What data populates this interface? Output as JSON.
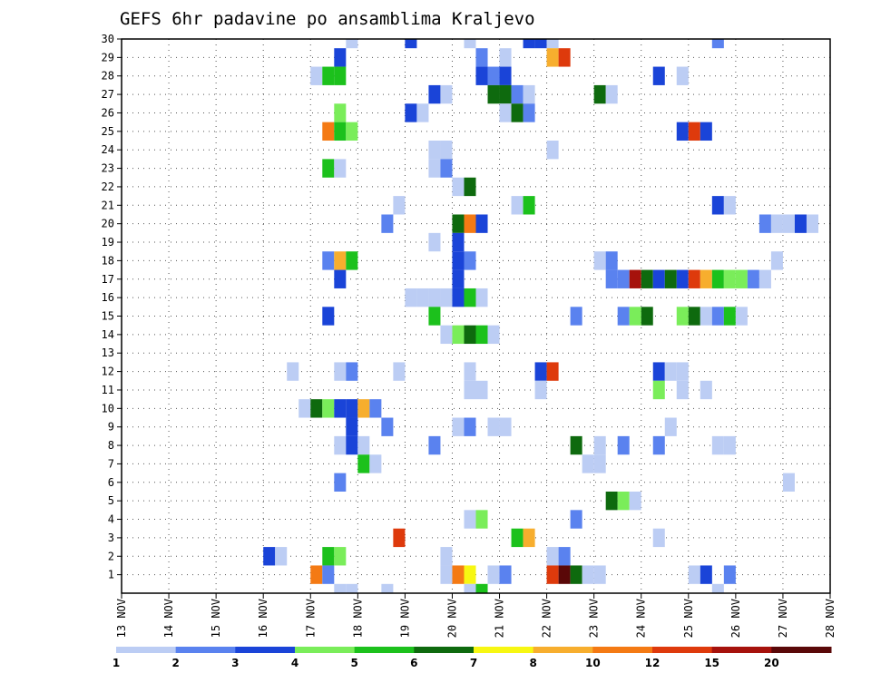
{
  "title": "GEFS 6hr padavine po ansamblima Kraljevo",
  "chart_data": {
    "type": "heatmap",
    "title": "GEFS 6hr padavine po ansamblima Kraljevo",
    "x_ticks": [
      "13 NOV",
      "14 NOV",
      "15 NOV",
      "16 NOV",
      "17 NOV",
      "18 NOV",
      "19 NOV",
      "20 NOV",
      "21 NOV",
      "22 NOV",
      "23 NOV",
      "24 NOV",
      "25 NOV",
      "26 NOV",
      "27 NOV",
      "28 NOV"
    ],
    "y_ticks": [
      1,
      2,
      3,
      4,
      5,
      6,
      7,
      8,
      9,
      10,
      11,
      12,
      13,
      14,
      15,
      16,
      17,
      18,
      19,
      20,
      21,
      22,
      23,
      24,
      25,
      26,
      27,
      28,
      29,
      30
    ],
    "x_step_hours": 6,
    "x_range_days": [
      "13 NOV",
      "28 NOV"
    ],
    "y_range": [
      0,
      30
    ],
    "grid": true,
    "levels": [
      "1",
      "2",
      "3",
      "4",
      "5",
      "6",
      "7",
      "8",
      "10",
      "12",
      "15",
      "20"
    ],
    "level_colors": [
      "#bccdf4",
      "#5a82ef",
      "#1a44d8",
      "#7aed5a",
      "#1cc11c",
      "#0e6a0e",
      "#f7f712",
      "#f7ae2e",
      "#f47a14",
      "#de3a0c",
      "#a6120c",
      "#5a0808"
    ],
    "cells": [
      {
        "x": "17 NOV 18h",
        "y": 30,
        "c": 0
      },
      {
        "x": "19 NOV 00h",
        "y": 30,
        "c": 2
      },
      {
        "x": "20 NOV 06h",
        "y": 30,
        "c": 0
      },
      {
        "x": "21 NOV 12h",
        "y": 30,
        "c": 2
      },
      {
        "x": "21 NOV 18h",
        "y": 30,
        "c": 2
      },
      {
        "x": "22 NOV 00h",
        "y": 30,
        "c": 0
      },
      {
        "x": "25 NOV 12h",
        "y": 30,
        "c": 1
      },
      {
        "x": "17 NOV 12h",
        "y": 29,
        "c": 2
      },
      {
        "x": "20 NOV 12h",
        "y": 29,
        "c": 1
      },
      {
        "x": "21 NOV 00h",
        "y": 29,
        "c": 0
      },
      {
        "x": "22 NOV 00h",
        "y": 29,
        "c": 7
      },
      {
        "x": "22 NOV 06h",
        "y": 29,
        "c": 9
      },
      {
        "x": "17 NOV 00h",
        "y": 28,
        "c": 0
      },
      {
        "x": "17 NOV 06h",
        "y": 28,
        "c": 4
      },
      {
        "x": "17 NOV 12h",
        "y": 28,
        "c": 4
      },
      {
        "x": "20 NOV 12h",
        "y": 28,
        "c": 2
      },
      {
        "x": "20 NOV 18h",
        "y": 28,
        "c": 1
      },
      {
        "x": "21 NOV 00h",
        "y": 28,
        "c": 2
      },
      {
        "x": "24 NOV 06h",
        "y": 28,
        "c": 2
      },
      {
        "x": "24 NOV 18h",
        "y": 28,
        "c": 0
      },
      {
        "x": "19 NOV 12h",
        "y": 27,
        "c": 2
      },
      {
        "x": "19 NOV 18h",
        "y": 27,
        "c": 0
      },
      {
        "x": "20 NOV 18h",
        "y": 27,
        "c": 5
      },
      {
        "x": "21 NOV 00h",
        "y": 27,
        "c": 5
      },
      {
        "x": "21 NOV 06h",
        "y": 27,
        "c": 1
      },
      {
        "x": "21 NOV 12h",
        "y": 27,
        "c": 0
      },
      {
        "x": "23 NOV 00h",
        "y": 27,
        "c": 5
      },
      {
        "x": "23 NOV 06h",
        "y": 27,
        "c": 0
      },
      {
        "x": "17 NOV 12h",
        "y": 26,
        "c": 3
      },
      {
        "x": "19 NOV 00h",
        "y": 26,
        "c": 2
      },
      {
        "x": "19 NOV 06h",
        "y": 26,
        "c": 0
      },
      {
        "x": "21 NOV 00h",
        "y": 26,
        "c": 0
      },
      {
        "x": "21 NOV 06h",
        "y": 26,
        "c": 5
      },
      {
        "x": "21 NOV 12h",
        "y": 26,
        "c": 1
      },
      {
        "x": "17 NOV 06h",
        "y": 25,
        "c": 8
      },
      {
        "x": "17 NOV 12h",
        "y": 25,
        "c": 4
      },
      {
        "x": "17 NOV 18h",
        "y": 25,
        "c": 3
      },
      {
        "x": "24 NOV 18h",
        "y": 25,
        "c": 2
      },
      {
        "x": "25 NOV 00h",
        "y": 25,
        "c": 9
      },
      {
        "x": "25 NOV 06h",
        "y": 25,
        "c": 2
      },
      {
        "x": "19 NOV 12h",
        "y": 24,
        "c": 0
      },
      {
        "x": "19 NOV 18h",
        "y": 24,
        "c": 0
      },
      {
        "x": "22 NOV 00h",
        "y": 24,
        "c": 0
      },
      {
        "x": "17 NOV 06h",
        "y": 23,
        "c": 4
      },
      {
        "x": "17 NOV 12h",
        "y": 23,
        "c": 0
      },
      {
        "x": "19 NOV 12h",
        "y": 23,
        "c": 0
      },
      {
        "x": "19 NOV 18h",
        "y": 23,
        "c": 1
      },
      {
        "x": "20 NOV 00h",
        "y": 22,
        "c": 0
      },
      {
        "x": "20 NOV 06h",
        "y": 22,
        "c": 5
      },
      {
        "x": "18 NOV 18h",
        "y": 21,
        "c": 0
      },
      {
        "x": "21 NOV 06h",
        "y": 21,
        "c": 0
      },
      {
        "x": "21 NOV 12h",
        "y": 21,
        "c": 4
      },
      {
        "x": "25 NOV 12h",
        "y": 21,
        "c": 2
      },
      {
        "x": "25 NOV 18h",
        "y": 21,
        "c": 0
      },
      {
        "x": "18 NOV 12h",
        "y": 20,
        "c": 1
      },
      {
        "x": "20 NOV 00h",
        "y": 20,
        "c": 5
      },
      {
        "x": "20 NOV 06h",
        "y": 20,
        "c": 8
      },
      {
        "x": "20 NOV 12h",
        "y": 20,
        "c": 2
      },
      {
        "x": "26 NOV 12h",
        "y": 20,
        "c": 1
      },
      {
        "x": "26 NOV 18h",
        "y": 20,
        "c": 0
      },
      {
        "x": "27 NOV 00h",
        "y": 20,
        "c": 0
      },
      {
        "x": "27 NOV 06h",
        "y": 20,
        "c": 2
      },
      {
        "x": "27 NOV 12h",
        "y": 20,
        "c": 0
      },
      {
        "x": "19 NOV 12h",
        "y": 19,
        "c": 0
      },
      {
        "x": "20 NOV 00h",
        "y": 19,
        "c": 2
      },
      {
        "x": "17 NOV 06h",
        "y": 18,
        "c": 1
      },
      {
        "x": "17 NOV 12h",
        "y": 18,
        "c": 7
      },
      {
        "x": "17 NOV 18h",
        "y": 18,
        "c": 4
      },
      {
        "x": "20 NOV 00h",
        "y": 18,
        "c": 2
      },
      {
        "x": "20 NOV 06h",
        "y": 18,
        "c": 1
      },
      {
        "x": "23 NOV 00h",
        "y": 18,
        "c": 0
      },
      {
        "x": "23 NOV 06h",
        "y": 18,
        "c": 1
      },
      {
        "x": "26 NOV 18h",
        "y": 18,
        "c": 0
      },
      {
        "x": "17 NOV 12h",
        "y": 17,
        "c": 2
      },
      {
        "x": "20 NOV 00h",
        "y": 17,
        "c": 2
      },
      {
        "x": "23 NOV 06h",
        "y": 17,
        "c": 1
      },
      {
        "x": "23 NOV 12h",
        "y": 17,
        "c": 1
      },
      {
        "x": "23 NOV 18h",
        "y": 17,
        "c": 10
      },
      {
        "x": "24 NOV 00h",
        "y": 17,
        "c": 5
      },
      {
        "x": "24 NOV 06h",
        "y": 17,
        "c": 2
      },
      {
        "x": "24 NOV 12h",
        "y": 17,
        "c": 5
      },
      {
        "x": "24 NOV 18h",
        "y": 17,
        "c": 2
      },
      {
        "x": "25 NOV 00h",
        "y": 17,
        "c": 9
      },
      {
        "x": "25 NOV 06h",
        "y": 17,
        "c": 7
      },
      {
        "x": "25 NOV 12h",
        "y": 17,
        "c": 4
      },
      {
        "x": "25 NOV 18h",
        "y": 17,
        "c": 3
      },
      {
        "x": "26 NOV 00h",
        "y": 17,
        "c": 3
      },
      {
        "x": "26 NOV 06h",
        "y": 17,
        "c": 1
      },
      {
        "x": "26 NOV 12h",
        "y": 17,
        "c": 0
      },
      {
        "x": "19 NOV 00h",
        "y": 16,
        "c": 0
      },
      {
        "x": "19 NOV 06h",
        "y": 16,
        "c": 0
      },
      {
        "x": "19 NOV 12h",
        "y": 16,
        "c": 0
      },
      {
        "x": "19 NOV 18h",
        "y": 16,
        "c": 0
      },
      {
        "x": "20 NOV 00h",
        "y": 16,
        "c": 2
      },
      {
        "x": "20 NOV 06h",
        "y": 16,
        "c": 4
      },
      {
        "x": "20 NOV 12h",
        "y": 16,
        "c": 0
      },
      {
        "x": "17 NOV 06h",
        "y": 15,
        "c": 2
      },
      {
        "x": "19 NOV 12h",
        "y": 15,
        "c": 4
      },
      {
        "x": "22 NOV 12h",
        "y": 15,
        "c": 1
      },
      {
        "x": "23 NOV 12h",
        "y": 15,
        "c": 1
      },
      {
        "x": "23 NOV 18h",
        "y": 15,
        "c": 3
      },
      {
        "x": "24 NOV 00h",
        "y": 15,
        "c": 5
      },
      {
        "x": "24 NOV 18h",
        "y": 15,
        "c": 3
      },
      {
        "x": "25 NOV 00h",
        "y": 15,
        "c": 5
      },
      {
        "x": "25 NOV 06h",
        "y": 15,
        "c": 0
      },
      {
        "x": "25 NOV 12h",
        "y": 15,
        "c": 1
      },
      {
        "x": "25 NOV 18h",
        "y": 15,
        "c": 4
      },
      {
        "x": "26 NOV 00h",
        "y": 15,
        "c": 0
      },
      {
        "x": "19 NOV 18h",
        "y": 14,
        "c": 0
      },
      {
        "x": "20 NOV 00h",
        "y": 14,
        "c": 3
      },
      {
        "x": "20 NOV 06h",
        "y": 14,
        "c": 5
      },
      {
        "x": "20 NOV 12h",
        "y": 14,
        "c": 4
      },
      {
        "x": "20 NOV 18h",
        "y": 14,
        "c": 0
      },
      {
        "x": "16 NOV 12h",
        "y": 12,
        "c": 0
      },
      {
        "x": "17 NOV 12h",
        "y": 12,
        "c": 0
      },
      {
        "x": "17 NOV 18h",
        "y": 12,
        "c": 1
      },
      {
        "x": "18 NOV 18h",
        "y": 12,
        "c": 0
      },
      {
        "x": "20 NOV 06h",
        "y": 12,
        "c": 0
      },
      {
        "x": "21 NOV 18h",
        "y": 12,
        "c": 2
      },
      {
        "x": "22 NOV 00h",
        "y": 12,
        "c": 9
      },
      {
        "x": "24 NOV 06h",
        "y": 12,
        "c": 2
      },
      {
        "x": "24 NOV 12h",
        "y": 12,
        "c": 0
      },
      {
        "x": "24 NOV 18h",
        "y": 12,
        "c": 0
      },
      {
        "x": "20 NOV 06h",
        "y": 11,
        "c": 0
      },
      {
        "x": "20 NOV 12h",
        "y": 11,
        "c": 0
      },
      {
        "x": "21 NOV 18h",
        "y": 11,
        "c": 0
      },
      {
        "x": "24 NOV 06h",
        "y": 11,
        "c": 3
      },
      {
        "x": "24 NOV 18h",
        "y": 11,
        "c": 0
      },
      {
        "x": "25 NOV 06h",
        "y": 11,
        "c": 0
      },
      {
        "x": "16 NOV 18h",
        "y": 10,
        "c": 0
      },
      {
        "x": "17 NOV 00h",
        "y": 10,
        "c": 5
      },
      {
        "x": "17 NOV 06h",
        "y": 10,
        "c": 3
      },
      {
        "x": "17 NOV 12h",
        "y": 10,
        "c": 2
      },
      {
        "x": "17 NOV 18h",
        "y": 10,
        "c": 2
      },
      {
        "x": "18 NOV 00h",
        "y": 10,
        "c": 7
      },
      {
        "x": "18 NOV 06h",
        "y": 10,
        "c": 1
      },
      {
        "x": "17 NOV 18h",
        "y": 9,
        "c": 2
      },
      {
        "x": "18 NOV 12h",
        "y": 9,
        "c": 1
      },
      {
        "x": "20 NOV 00h",
        "y": 9,
        "c": 0
      },
      {
        "x": "20 NOV 06h",
        "y": 9,
        "c": 1
      },
      {
        "x": "20 NOV 18h",
        "y": 9,
        "c": 0
      },
      {
        "x": "21 NOV 00h",
        "y": 9,
        "c": 0
      },
      {
        "x": "24 NOV 12h",
        "y": 9,
        "c": 0
      },
      {
        "x": "17 NOV 12h",
        "y": 8,
        "c": 0
      },
      {
        "x": "17 NOV 18h",
        "y": 8,
        "c": 2
      },
      {
        "x": "18 NOV 00h",
        "y": 8,
        "c": 0
      },
      {
        "x": "19 NOV 12h",
        "y": 8,
        "c": 1
      },
      {
        "x": "22 NOV 12h",
        "y": 8,
        "c": 5
      },
      {
        "x": "23 NOV 00h",
        "y": 8,
        "c": 0
      },
      {
        "x": "23 NOV 12h",
        "y": 8,
        "c": 1
      },
      {
        "x": "24 NOV 06h",
        "y": 8,
        "c": 1
      },
      {
        "x": "25 NOV 12h",
        "y": 8,
        "c": 0
      },
      {
        "x": "25 NOV 18h",
        "y": 8,
        "c": 0
      },
      {
        "x": "18 NOV 00h",
        "y": 7,
        "c": 4
      },
      {
        "x": "18 NOV 06h",
        "y": 7,
        "c": 0
      },
      {
        "x": "22 NOV 18h",
        "y": 7,
        "c": 0
      },
      {
        "x": "23 NOV 00h",
        "y": 7,
        "c": 0
      },
      {
        "x": "17 NOV 12h",
        "y": 6,
        "c": 1
      },
      {
        "x": "27 NOV 00h",
        "y": 6,
        "c": 0
      },
      {
        "x": "23 NOV 06h",
        "y": 5,
        "c": 5
      },
      {
        "x": "23 NOV 12h",
        "y": 5,
        "c": 3
      },
      {
        "x": "23 NOV 18h",
        "y": 5,
        "c": 0
      },
      {
        "x": "20 NOV 06h",
        "y": 4,
        "c": 0
      },
      {
        "x": "20 NOV 12h",
        "y": 4,
        "c": 3
      },
      {
        "x": "22 NOV 12h",
        "y": 4,
        "c": 1
      },
      {
        "x": "18 NOV 18h",
        "y": 3,
        "c": 9
      },
      {
        "x": "21 NOV 06h",
        "y": 3,
        "c": 4
      },
      {
        "x": "21 NOV 12h",
        "y": 3,
        "c": 7
      },
      {
        "x": "24 NOV 06h",
        "y": 3,
        "c": 0
      },
      {
        "x": "16 NOV 00h",
        "y": 2,
        "c": 2
      },
      {
        "x": "16 NOV 06h",
        "y": 2,
        "c": 0
      },
      {
        "x": "17 NOV 06h",
        "y": 2,
        "c": 4
      },
      {
        "x": "17 NOV 12h",
        "y": 2,
        "c": 3
      },
      {
        "x": "19 NOV 18h",
        "y": 2,
        "c": 0
      },
      {
        "x": "22 NOV 00h",
        "y": 2,
        "c": 0
      },
      {
        "x": "22 NOV 06h",
        "y": 2,
        "c": 1
      },
      {
        "x": "17 NOV 00h",
        "y": 1,
        "c": 8
      },
      {
        "x": "17 NOV 06h",
        "y": 1,
        "c": 1
      },
      {
        "x": "19 NOV 18h",
        "y": 1,
        "c": 0
      },
      {
        "x": "20 NOV 00h",
        "y": 1,
        "c": 8
      },
      {
        "x": "20 NOV 06h",
        "y": 1,
        "c": 6
      },
      {
        "x": "20 NOV 18h",
        "y": 1,
        "c": 0
      },
      {
        "x": "21 NOV 00h",
        "y": 1,
        "c": 1
      },
      {
        "x": "22 NOV 00h",
        "y": 1,
        "c": 9
      },
      {
        "x": "22 NOV 06h",
        "y": 1,
        "c": 11
      },
      {
        "x": "22 NOV 12h",
        "y": 1,
        "c": 5
      },
      {
        "x": "22 NOV 18h",
        "y": 1,
        "c": 0
      },
      {
        "x": "23 NOV 00h",
        "y": 1,
        "c": 0
      },
      {
        "x": "25 NOV 00h",
        "y": 1,
        "c": 0
      },
      {
        "x": "25 NOV 06h",
        "y": 1,
        "c": 2
      },
      {
        "x": "25 NOV 18h",
        "y": 1,
        "c": 1
      },
      {
        "x": "17 NOV 12h",
        "y": 0,
        "c": 0
      },
      {
        "x": "17 NOV 18h",
        "y": 0,
        "c": 0
      },
      {
        "x": "18 NOV 12h",
        "y": 0,
        "c": 0
      },
      {
        "x": "20 NOV 06h",
        "y": 0,
        "c": 0
      },
      {
        "x": "20 NOV 12h",
        "y": 0,
        "c": 4
      },
      {
        "x": "25 NOV 12h",
        "y": 0,
        "c": 0
      }
    ]
  }
}
